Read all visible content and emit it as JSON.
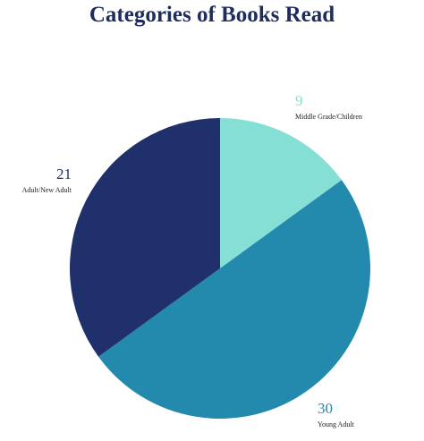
{
  "chart_data": {
    "type": "pie",
    "title": "Categories of Books Read",
    "slices": [
      {
        "label": "Middle Grade/Children",
        "value": 9,
        "color": "#86dfd5",
        "value_color": "#86dfd5"
      },
      {
        "label": "Young Adult",
        "value": 30,
        "color": "#2389ad",
        "value_color": "#2389ad"
      },
      {
        "label": "Adult/New Adult",
        "value": 21,
        "color": "#20306a",
        "value_color": "#20306a"
      }
    ],
    "start_angle_deg": 0,
    "direction": "clockwise",
    "legend": "none"
  }
}
